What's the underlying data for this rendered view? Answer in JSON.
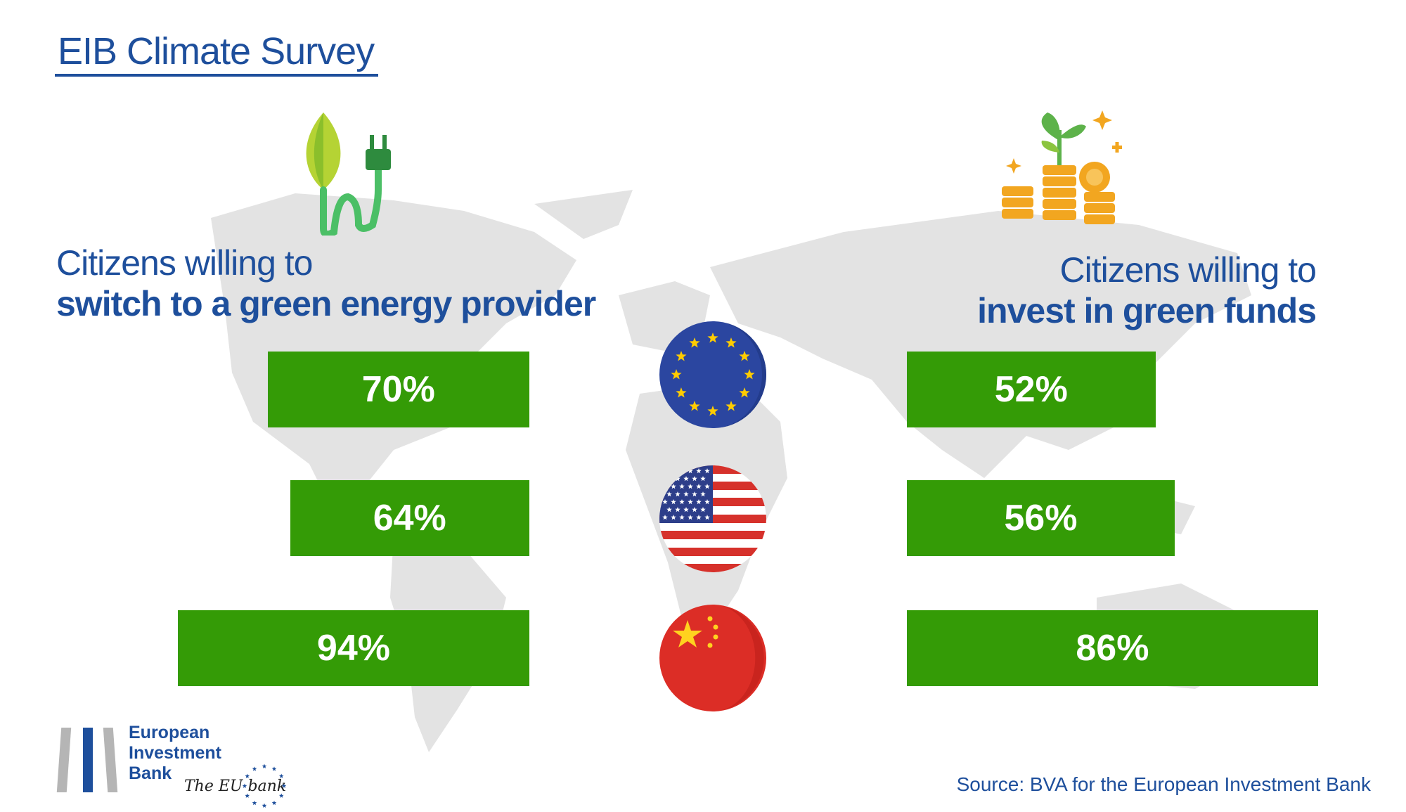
{
  "title": "EIB Climate Survey",
  "colors": {
    "bar": "#349b06",
    "heading": "#1e4f9c",
    "map": "#e3e3e3"
  },
  "icons": {
    "left": "plug-leaf-icon",
    "right": "coins-plant-icon"
  },
  "chart_data": [
    {
      "type": "bar",
      "title_line1": "Citizens willing to",
      "title_line2": "switch to a green energy provider",
      "categories": [
        "eu-flag-icon",
        "us-flag-icon",
        "china-flag-icon"
      ],
      "values": [
        70,
        64,
        94
      ],
      "labels": [
        "70%",
        "64%",
        "94%"
      ],
      "orientation": "horizontal-leftward"
    },
    {
      "type": "bar",
      "title_line1": "Citizens willing to",
      "title_line2": "invest in green funds",
      "categories": [
        "eu-flag-icon",
        "us-flag-icon",
        "china-flag-icon"
      ],
      "values": [
        52,
        56,
        86
      ],
      "labels": [
        "52%",
        "56%",
        "86%"
      ],
      "orientation": "horizontal-rightward"
    }
  ],
  "logo": {
    "line1": "European",
    "line2": "Investment",
    "line3": "Bank",
    "tagline": "The EU bank"
  },
  "source": "Source: BVA for the European Investment Bank"
}
